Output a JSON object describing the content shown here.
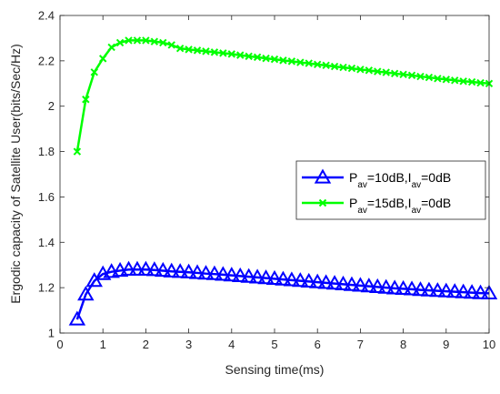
{
  "chart_data": {
    "type": "line",
    "xlabel": "Sensing time(ms)",
    "ylabel": "Ergodic capacity of Satellite User(bits/Sec/Hz)",
    "xlim": [
      0,
      10
    ],
    "ylim": [
      1,
      2.4
    ],
    "xticks": [
      "0",
      "1",
      "2",
      "3",
      "4",
      "5",
      "6",
      "7",
      "8",
      "9",
      "10"
    ],
    "yticks": [
      "1",
      "1.2",
      "1.4",
      "1.6",
      "1.8",
      "2",
      "2.2",
      "2.4"
    ],
    "grid": false,
    "legend_position": "middle-right",
    "x": [
      0.4,
      0.6,
      0.8,
      1.0,
      1.2,
      1.4,
      1.6,
      1.8,
      2.0,
      2.2,
      2.4,
      2.6,
      2.8,
      3.0,
      3.2,
      3.4,
      3.6,
      3.8,
      4.0,
      4.2,
      4.4,
      4.6,
      4.8,
      5.0,
      5.2,
      5.4,
      5.6,
      5.8,
      6.0,
      6.2,
      6.4,
      6.6,
      6.8,
      7.0,
      7.2,
      7.4,
      7.6,
      7.8,
      8.0,
      8.2,
      8.4,
      8.6,
      8.8,
      9.0,
      9.2,
      9.4,
      9.6,
      9.8,
      10.0
    ],
    "series": [
      {
        "legend_main": "P",
        "legend_sub1": "av",
        "legend_mid": "=10dB,I",
        "legend_sub2": "av",
        "legend_end": "=0dB",
        "color": "#0000ff",
        "marker": "triangle",
        "values": [
          1.06,
          1.17,
          1.23,
          1.26,
          1.27,
          1.275,
          1.28,
          1.28,
          1.28,
          1.278,
          1.275,
          1.272,
          1.27,
          1.268,
          1.265,
          1.262,
          1.26,
          1.257,
          1.254,
          1.251,
          1.248,
          1.245,
          1.242,
          1.239,
          1.236,
          1.233,
          1.23,
          1.227,
          1.224,
          1.221,
          1.218,
          1.215,
          1.212,
          1.209,
          1.206,
          1.203,
          1.2,
          1.197,
          1.195,
          1.193,
          1.19,
          1.188,
          1.186,
          1.184,
          1.182,
          1.18,
          1.178,
          1.176,
          1.175
        ]
      },
      {
        "legend_main": "P",
        "legend_sub1": "av",
        "legend_mid": "=15dB,I",
        "legend_sub2": "av",
        "legend_end": "=0dB",
        "color": "#00ff00",
        "marker": "x",
        "values": [
          1.8,
          2.03,
          2.15,
          2.21,
          2.26,
          2.28,
          2.29,
          2.29,
          2.29,
          2.285,
          2.28,
          2.27,
          2.255,
          2.25,
          2.246,
          2.242,
          2.238,
          2.234,
          2.23,
          2.225,
          2.22,
          2.216,
          2.211,
          2.207,
          2.202,
          2.198,
          2.193,
          2.189,
          2.184,
          2.18,
          2.175,
          2.171,
          2.167,
          2.162,
          2.158,
          2.153,
          2.149,
          2.144,
          2.14,
          2.136,
          2.131,
          2.127,
          2.122,
          2.118,
          2.114,
          2.11,
          2.107,
          2.103,
          2.1
        ]
      }
    ]
  }
}
